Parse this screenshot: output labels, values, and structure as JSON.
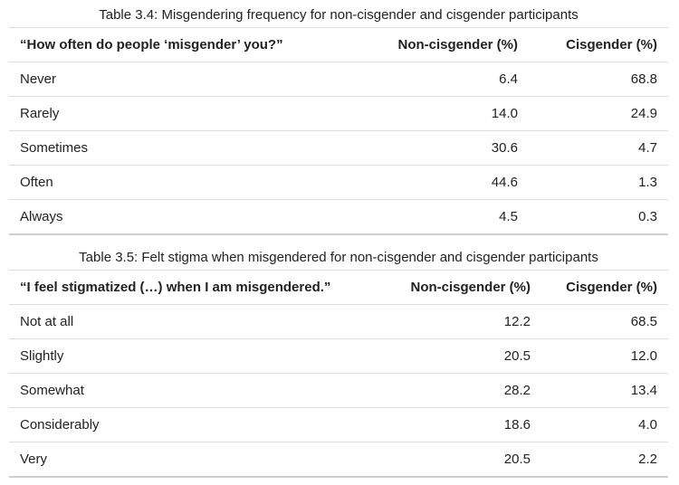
{
  "table1": {
    "caption": "Table 3.4: Misgendering frequency for non-cisgender and cisgender participants",
    "headers": [
      "“How often do people ‘misgender’ you?”",
      "Non-cisgender (%)",
      "Cisgender (%)"
    ],
    "rows": [
      [
        "Never",
        "6.4",
        "68.8"
      ],
      [
        "Rarely",
        "14.0",
        "24.9"
      ],
      [
        "Sometimes",
        "30.6",
        "4.7"
      ],
      [
        "Often",
        "44.6",
        "1.3"
      ],
      [
        "Always",
        "4.5",
        "0.3"
      ]
    ]
  },
  "table2": {
    "caption": "Table 3.5: Felt stigma when misgendered for non-cisgender and cisgender participants",
    "headers": [
      "“I feel stigmatized (…) when I am misgendered.”",
      "Non-cisgender (%)",
      "Cisgender (%)"
    ],
    "rows": [
      [
        "Not at all",
        "12.2",
        "68.5"
      ],
      [
        "Slightly",
        "20.5",
        "12.0"
      ],
      [
        "Somewhat",
        "28.2",
        "13.4"
      ],
      [
        "Considerably",
        "18.6",
        "4.0"
      ],
      [
        "Very",
        "20.5",
        "2.2"
      ]
    ]
  }
}
